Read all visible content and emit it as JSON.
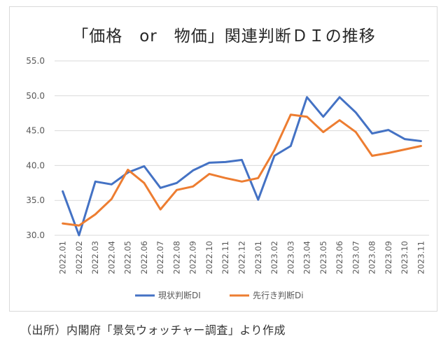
{
  "chart_data": {
    "type": "line",
    "title": "「価格　or　物価」関連判断ＤＩの推移",
    "xlabel": "",
    "ylabel": "",
    "categories": [
      "2022.01",
      "2022.02",
      "2022.03",
      "2022.04",
      "2022.05",
      "2022.06",
      "2022.07",
      "2022.08",
      "2022.09",
      "2022.10",
      "2022.11",
      "2022.12",
      "2023.01",
      "2023.02",
      "2023.03",
      "2023.04",
      "2023.05",
      "2023.06",
      "2023.07",
      "2023.08",
      "2023.09",
      "2023.10",
      "2023.11"
    ],
    "ylim": [
      30.0,
      55.0
    ],
    "yticks": [
      "30.0",
      "35.0",
      "40.0",
      "45.0",
      "50.0",
      "55.0"
    ],
    "grid": true,
    "legend_position": "bottom",
    "series": [
      {
        "name": "現状判断DI",
        "color": "#4472c4",
        "values": [
          36.3,
          30.0,
          37.7,
          37.3,
          39.0,
          39.9,
          36.8,
          37.5,
          39.3,
          40.4,
          40.5,
          40.8,
          35.1,
          41.4,
          42.8,
          49.8,
          47.0,
          49.8,
          47.6,
          44.6,
          45.1,
          43.8,
          43.5
        ]
      },
      {
        "name": "先行き判断Di",
        "color": "#ed7d31",
        "values": [
          31.7,
          31.4,
          33.0,
          35.2,
          39.4,
          37.5,
          33.7,
          36.5,
          37.0,
          38.8,
          38.2,
          37.7,
          38.2,
          42.2,
          47.3,
          47.0,
          44.8,
          46.5,
          44.8,
          41.4,
          41.8,
          42.3,
          42.8
        ]
      }
    ]
  },
  "source_note": "（出所）内閣府「景気ウォッチャー調査」より作成"
}
